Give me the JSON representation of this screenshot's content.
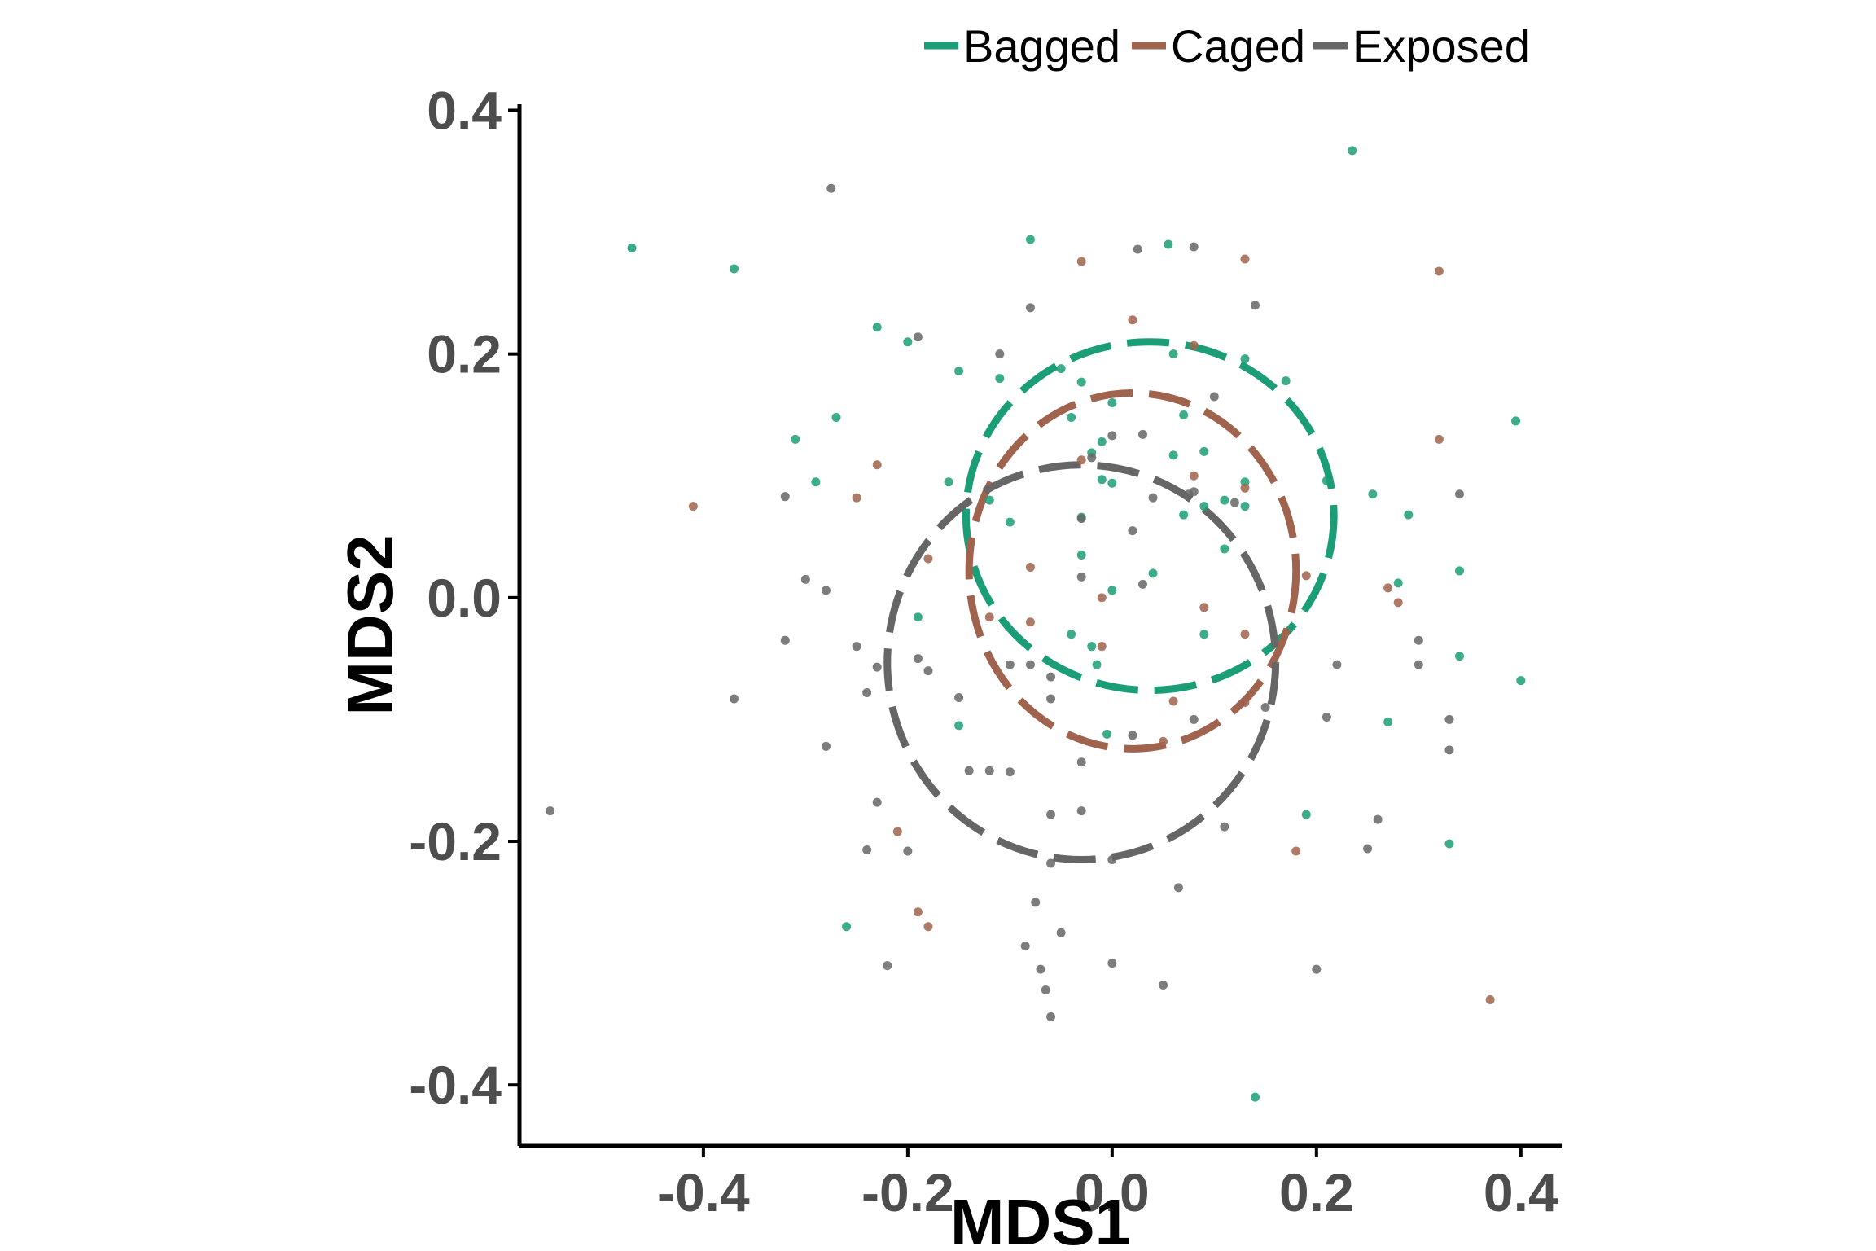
{
  "chart_data": {
    "type": "scatter",
    "title": "",
    "xlabel": "MDS1",
    "ylabel": "MDS2",
    "xlim": [
      -0.58,
      0.44
    ],
    "ylim": [
      -0.45,
      0.405
    ],
    "xticks": [
      -0.4,
      -0.2,
      0.0,
      0.2,
      0.4
    ],
    "yticks": [
      -0.4,
      -0.2,
      0.0,
      0.2,
      0.4
    ],
    "xtick_labels": [
      "-0.4",
      "-0.2",
      "0.0",
      "0.2",
      "0.4"
    ],
    "ytick_labels": [
      "-0.4",
      "-0.2",
      "0.0",
      "0.2",
      "0.4"
    ],
    "grid": false,
    "legend_position": "top-right",
    "series": [
      {
        "name": "Bagged",
        "color": "#1b9e77",
        "points": [
          [
            -0.47,
            0.287
          ],
          [
            -0.37,
            0.27
          ],
          [
            -0.23,
            0.222
          ],
          [
            -0.2,
            0.21
          ],
          [
            -0.31,
            0.13
          ],
          [
            -0.27,
            0.148
          ],
          [
            -0.29,
            0.095
          ],
          [
            -0.08,
            0.294
          ],
          [
            0.055,
            0.29
          ],
          [
            0.235,
            0.367
          ],
          [
            0.395,
            0.145
          ],
          [
            -0.15,
            0.186
          ],
          [
            -0.11,
            0.18
          ],
          [
            -0.05,
            0.188
          ],
          [
            -0.03,
            0.177
          ],
          [
            0.06,
            0.2
          ],
          [
            0.13,
            0.196
          ],
          [
            0.17,
            0.178
          ],
          [
            0.0,
            0.16
          ],
          [
            -0.04,
            0.148
          ],
          [
            -0.16,
            0.095
          ],
          [
            -0.1,
            0.062
          ],
          [
            -0.12,
            0.08
          ],
          [
            -0.02,
            0.119
          ],
          [
            -0.01,
            0.128
          ],
          [
            0.06,
            0.117
          ],
          [
            0.09,
            0.12
          ],
          [
            0.07,
            0.15
          ],
          [
            0.13,
            0.095
          ],
          [
            0.11,
            0.08
          ],
          [
            -0.01,
            0.097
          ],
          [
            0.0,
            0.094
          ],
          [
            -0.03,
            0.066
          ],
          [
            0.07,
            0.068
          ],
          [
            0.09,
            0.075
          ],
          [
            0.13,
            0.075
          ],
          [
            0.11,
            0.04
          ],
          [
            -0.03,
            0.035
          ],
          [
            0.04,
            0.02
          ],
          [
            0.0,
            0.006
          ],
          [
            0.21,
            0.096
          ],
          [
            0.255,
            0.085
          ],
          [
            0.29,
            0.068
          ],
          [
            0.34,
            0.022
          ],
          [
            0.28,
            0.012
          ],
          [
            -0.19,
            -0.016
          ],
          [
            -0.04,
            -0.03
          ],
          [
            -0.02,
            -0.04
          ],
          [
            0.09,
            -0.03
          ],
          [
            -0.015,
            -0.055
          ],
          [
            -0.005,
            -0.112
          ],
          [
            -0.15,
            -0.105
          ],
          [
            0.19,
            -0.178
          ],
          [
            0.27,
            -0.102
          ],
          [
            0.34,
            -0.048
          ],
          [
            0.4,
            -0.068
          ],
          [
            0.33,
            -0.202
          ],
          [
            -0.26,
            -0.27
          ],
          [
            0.14,
            -0.41
          ]
        ]
      },
      {
        "name": "Caged",
        "color": "#a0634e",
        "points": [
          [
            -0.41,
            0.075
          ],
          [
            -0.03,
            0.276
          ],
          [
            0.13,
            0.278
          ],
          [
            0.32,
            0.268
          ],
          [
            0.02,
            0.228
          ],
          [
            0.08,
            0.207
          ],
          [
            -0.23,
            0.109
          ],
          [
            -0.25,
            0.082
          ],
          [
            -0.03,
            0.113
          ],
          [
            0.08,
            0.1
          ],
          [
            0.13,
            0.09
          ],
          [
            0.32,
            0.13
          ],
          [
            -0.18,
            0.032
          ],
          [
            -0.08,
            0.025
          ],
          [
            -0.01,
            0.0
          ],
          [
            0.09,
            -0.008
          ],
          [
            0.13,
            -0.03
          ],
          [
            0.19,
            0.018
          ],
          [
            0.27,
            0.008
          ],
          [
            0.28,
            -0.004
          ],
          [
            -0.12,
            -0.016
          ],
          [
            -0.08,
            -0.02
          ],
          [
            -0.01,
            -0.04
          ],
          [
            0.06,
            -0.085
          ],
          [
            0.13,
            -0.086
          ],
          [
            0.05,
            -0.118
          ],
          [
            -0.21,
            -0.192
          ],
          [
            -0.19,
            -0.258
          ],
          [
            -0.18,
            -0.27
          ],
          [
            0.18,
            -0.208
          ],
          [
            0.37,
            -0.33
          ]
        ]
      },
      {
        "name": "Exposed",
        "color": "#666666",
        "points": [
          [
            -0.275,
            0.336
          ],
          [
            0.025,
            0.286
          ],
          [
            0.08,
            0.288
          ],
          [
            -0.08,
            0.238
          ],
          [
            0.14,
            0.24
          ],
          [
            -0.19,
            0.214
          ],
          [
            -0.11,
            0.2
          ],
          [
            0.0,
            0.133
          ],
          [
            0.03,
            0.134
          ],
          [
            -0.02,
            0.115
          ],
          [
            0.04,
            0.082
          ],
          [
            0.075,
            0.085
          ],
          [
            0.1,
            0.165
          ],
          [
            0.08,
            0.087
          ],
          [
            0.12,
            0.078
          ],
          [
            -0.32,
            0.083
          ],
          [
            -0.3,
            0.015
          ],
          [
            -0.28,
            0.006
          ],
          [
            0.34,
            0.085
          ],
          [
            -0.03,
            0.065
          ],
          [
            0.02,
            0.055
          ],
          [
            -0.03,
            0.017
          ],
          [
            0.03,
            0.011
          ],
          [
            -0.32,
            -0.035
          ],
          [
            -0.25,
            -0.04
          ],
          [
            -0.23,
            -0.057
          ],
          [
            -0.24,
            -0.078
          ],
          [
            -0.19,
            -0.05
          ],
          [
            -0.18,
            -0.06
          ],
          [
            -0.15,
            -0.082
          ],
          [
            -0.1,
            -0.055
          ],
          [
            -0.08,
            -0.055
          ],
          [
            -0.06,
            -0.065
          ],
          [
            -0.06,
            -0.083
          ],
          [
            0.3,
            -0.035
          ],
          [
            0.3,
            -0.055
          ],
          [
            0.22,
            -0.055
          ],
          [
            0.15,
            -0.09
          ],
          [
            0.21,
            -0.098
          ],
          [
            0.33,
            -0.1
          ],
          [
            0.02,
            -0.113
          ],
          [
            0.08,
            -0.1
          ],
          [
            -0.37,
            -0.083
          ],
          [
            -0.28,
            -0.122
          ],
          [
            -0.14,
            -0.142
          ],
          [
            -0.12,
            -0.142
          ],
          [
            -0.1,
            -0.143
          ],
          [
            -0.03,
            -0.135
          ],
          [
            -0.23,
            -0.168
          ],
          [
            -0.06,
            -0.178
          ],
          [
            -0.03,
            -0.175
          ],
          [
            0.11,
            -0.188
          ],
          [
            0.33,
            -0.125
          ],
          [
            0.26,
            -0.182
          ],
          [
            0.25,
            -0.206
          ],
          [
            -0.55,
            -0.175
          ],
          [
            -0.24,
            -0.207
          ],
          [
            -0.2,
            -0.208
          ],
          [
            -0.06,
            -0.218
          ],
          [
            0.0,
            -0.215
          ],
          [
            0.065,
            -0.238
          ],
          [
            -0.075,
            -0.25
          ],
          [
            -0.085,
            -0.286
          ],
          [
            -0.05,
            -0.275
          ],
          [
            -0.22,
            -0.302
          ],
          [
            -0.07,
            -0.305
          ],
          [
            -0.065,
            -0.322
          ],
          [
            -0.06,
            -0.344
          ],
          [
            0.0,
            -0.3
          ],
          [
            0.05,
            -0.318
          ],
          [
            0.2,
            -0.305
          ]
        ]
      }
    ],
    "ellipses": [
      {
        "series": "Bagged",
        "center": [
          0.037,
          0.067
        ],
        "radii": [
          0.18,
          0.143
        ]
      },
      {
        "series": "Caged",
        "center": [
          0.02,
          0.022
        ],
        "radii": [
          0.16,
          0.146
        ]
      },
      {
        "series": "Exposed",
        "center": [
          -0.03,
          -0.053
        ],
        "radii": [
          0.19,
          0.162
        ]
      }
    ]
  }
}
